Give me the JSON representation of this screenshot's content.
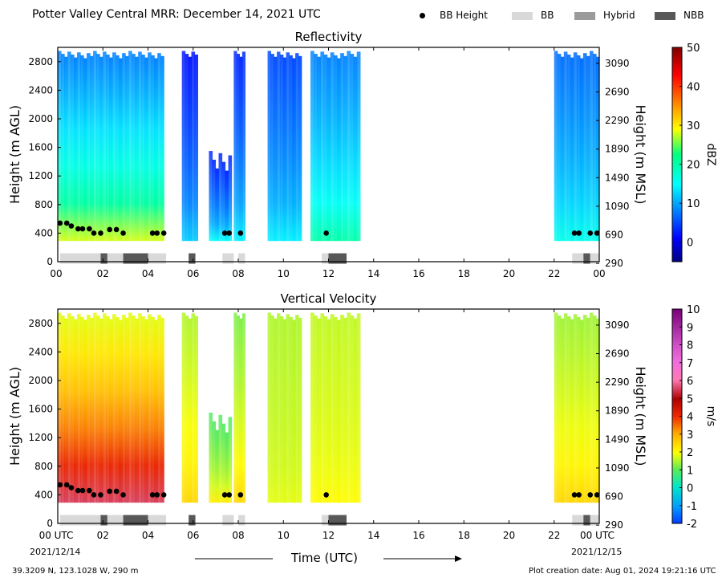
{
  "header": {
    "title": "Potter Valley Central MRR:  December 14, 2021 UTC",
    "legend": [
      {
        "label": "BB Height",
        "kind": "dot",
        "color": "#000000"
      },
      {
        "label": "BB",
        "kind": "bar",
        "color": "#d9d9d9"
      },
      {
        "label": "Hybrid",
        "kind": "bar",
        "color": "#9b9b9b"
      },
      {
        "label": "NBB",
        "kind": "bar",
        "color": "#585858"
      }
    ]
  },
  "footer": {
    "location": "39.3209 N, 123.1028 W, 290 m",
    "creation": "Plot creation date: Aug 01, 2024 19:21:16 UTC",
    "time_label": "Time (UTC)",
    "start_date": "2021/12/14",
    "end_date": "2021/12/15"
  },
  "chart_data": [
    {
      "type": "heatmap",
      "title": "Reflectivity",
      "ylabel_left": "Height (m AGL)",
      "ylabel_right": "Height (m MSL)",
      "colorbar_label": "dBZ",
      "colorbar_ticks": [
        "50",
        "40",
        "30",
        "20",
        "10",
        "0"
      ],
      "colorbar_range": [
        -5,
        50
      ],
      "colorscale": "jet",
      "xlim": [
        0,
        24
      ],
      "ylim": [
        0,
        3000
      ],
      "x_ticks": [
        "00",
        "02",
        "04",
        "06",
        "08",
        "10",
        "12",
        "14",
        "16",
        "18",
        "20",
        "22",
        "00"
      ],
      "y_ticks_left": [
        "0",
        "400",
        "800",
        "1200",
        "1600",
        "2000",
        "2400",
        "2800"
      ],
      "y_ticks_right": [
        "290",
        "690",
        "1090",
        "1490",
        "1890",
        "2290",
        "2690",
        "3090"
      ],
      "echo_segments": [
        {
          "x0": 0.0,
          "x1": 4.7,
          "top": 2950,
          "low_value": 28,
          "high_value": 8
        },
        {
          "x0": 5.5,
          "x1": 6.2,
          "top": 2950,
          "low_value": 12,
          "high_value": 2
        },
        {
          "x0": 6.7,
          "x1": 7.7,
          "top": 1550,
          "low_value": 15,
          "high_value": 3
        },
        {
          "x0": 7.8,
          "x1": 8.3,
          "top": 2950,
          "low_value": 14,
          "high_value": 3
        },
        {
          "x0": 9.3,
          "x1": 10.8,
          "top": 2950,
          "low_value": 14,
          "high_value": 5
        },
        {
          "x0": 11.2,
          "x1": 13.4,
          "top": 2950,
          "low_value": 20,
          "high_value": 8
        },
        {
          "x0": 22.0,
          "x1": 24.0,
          "top": 2950,
          "low_value": 16,
          "high_value": 7
        }
      ],
      "bb_height": {
        "x": [
          0.1,
          0.4,
          0.6,
          0.9,
          1.1,
          1.4,
          1.6,
          1.9,
          2.3,
          2.6,
          2.9,
          4.2,
          4.4,
          4.7,
          7.4,
          7.6,
          8.1,
          11.9,
          22.9,
          23.1,
          23.6,
          23.9
        ],
        "y": [
          540,
          540,
          500,
          460,
          460,
          460,
          400,
          400,
          450,
          450,
          400,
          400,
          400,
          400,
          400,
          400,
          400,
          400,
          400,
          400,
          400,
          400
        ]
      },
      "bb_type": [
        {
          "x0": 0.1,
          "x1": 1.9,
          "type": "BB"
        },
        {
          "x0": 1.9,
          "x1": 2.2,
          "type": "NBB"
        },
        {
          "x0": 2.2,
          "x1": 2.9,
          "type": "BB"
        },
        {
          "x0": 2.9,
          "x1": 4.0,
          "type": "NBB"
        },
        {
          "x0": 4.0,
          "x1": 4.8,
          "type": "BB"
        },
        {
          "x0": 5.8,
          "x1": 6.1,
          "type": "NBB"
        },
        {
          "x0": 7.3,
          "x1": 7.8,
          "type": "BB"
        },
        {
          "x0": 8.0,
          "x1": 8.3,
          "type": "BB"
        },
        {
          "x0": 11.7,
          "x1": 12.0,
          "type": "BB"
        },
        {
          "x0": 12.0,
          "x1": 12.8,
          "type": "NBB"
        },
        {
          "x0": 22.8,
          "x1": 23.3,
          "type": "BB"
        },
        {
          "x0": 23.3,
          "x1": 23.6,
          "type": "NBB"
        },
        {
          "x0": 23.6,
          "x1": 24.0,
          "type": "BB"
        }
      ]
    },
    {
      "type": "heatmap",
      "title": "Vertical Velocity",
      "ylabel_left": "Height (m AGL)",
      "ylabel_right": "Height (m MSL)",
      "colorbar_label": "m/s",
      "colorbar_ticks": [
        "10",
        "9",
        "8",
        "7",
        "6",
        "5",
        "4",
        "3",
        "2",
        "1",
        "0",
        "-1",
        "-2"
      ],
      "colorbar_range": [
        -2,
        10
      ],
      "colorscale": "velocity",
      "xlim": [
        0,
        24
      ],
      "ylim": [
        0,
        3000
      ],
      "x_ticks": [
        "00 UTC",
        "02",
        "04",
        "06",
        "08",
        "10",
        "12",
        "14",
        "16",
        "18",
        "20",
        "22",
        "00 UTC"
      ],
      "y_ticks_left": [
        "0",
        "400",
        "800",
        "1200",
        "1600",
        "2000",
        "2400",
        "2800"
      ],
      "y_ticks_right": [
        "290",
        "690",
        "1090",
        "1490",
        "1890",
        "2290",
        "2690",
        "3090"
      ],
      "echo_segments": [
        {
          "x0": 0.0,
          "x1": 4.7,
          "top": 2950,
          "low_value": 5.5,
          "high_value": 1.8
        },
        {
          "x0": 5.5,
          "x1": 6.2,
          "top": 2950,
          "low_value": 2.5,
          "high_value": 1.5
        },
        {
          "x0": 6.7,
          "x1": 7.7,
          "top": 1550,
          "low_value": 2.2,
          "high_value": 0.9
        },
        {
          "x0": 7.8,
          "x1": 8.3,
          "top": 2950,
          "low_value": 2.5,
          "high_value": 1.2
        },
        {
          "x0": 9.3,
          "x1": 10.8,
          "top": 2950,
          "low_value": 1.8,
          "high_value": 1.5
        },
        {
          "x0": 11.2,
          "x1": 13.4,
          "top": 2950,
          "low_value": 2.0,
          "high_value": 1.6
        },
        {
          "x0": 22.0,
          "x1": 24.0,
          "top": 2950,
          "low_value": 2.5,
          "high_value": 1.4
        }
      ],
      "bb_height": {
        "x": [
          0.1,
          0.4,
          0.6,
          0.9,
          1.1,
          1.4,
          1.6,
          1.9,
          2.3,
          2.6,
          2.9,
          4.2,
          4.4,
          4.7,
          7.4,
          7.6,
          8.1,
          11.9,
          22.9,
          23.1,
          23.6,
          23.9
        ],
        "y": [
          540,
          540,
          500,
          460,
          460,
          460,
          400,
          400,
          450,
          450,
          400,
          400,
          400,
          400,
          400,
          400,
          400,
          400,
          400,
          400,
          400,
          400
        ]
      },
      "bb_type": [
        {
          "x0": 0.1,
          "x1": 1.9,
          "type": "BB"
        },
        {
          "x0": 1.9,
          "x1": 2.2,
          "type": "NBB"
        },
        {
          "x0": 2.2,
          "x1": 2.9,
          "type": "BB"
        },
        {
          "x0": 2.9,
          "x1": 4.0,
          "type": "NBB"
        },
        {
          "x0": 4.0,
          "x1": 4.8,
          "type": "BB"
        },
        {
          "x0": 5.8,
          "x1": 6.1,
          "type": "NBB"
        },
        {
          "x0": 7.3,
          "x1": 7.8,
          "type": "BB"
        },
        {
          "x0": 8.0,
          "x1": 8.3,
          "type": "BB"
        },
        {
          "x0": 11.7,
          "x1": 12.0,
          "type": "BB"
        },
        {
          "x0": 12.0,
          "x1": 12.8,
          "type": "NBB"
        },
        {
          "x0": 22.8,
          "x1": 23.3,
          "type": "BB"
        },
        {
          "x0": 23.3,
          "x1": 23.6,
          "type": "NBB"
        },
        {
          "x0": 23.6,
          "x1": 24.0,
          "type": "BB"
        }
      ]
    }
  ]
}
